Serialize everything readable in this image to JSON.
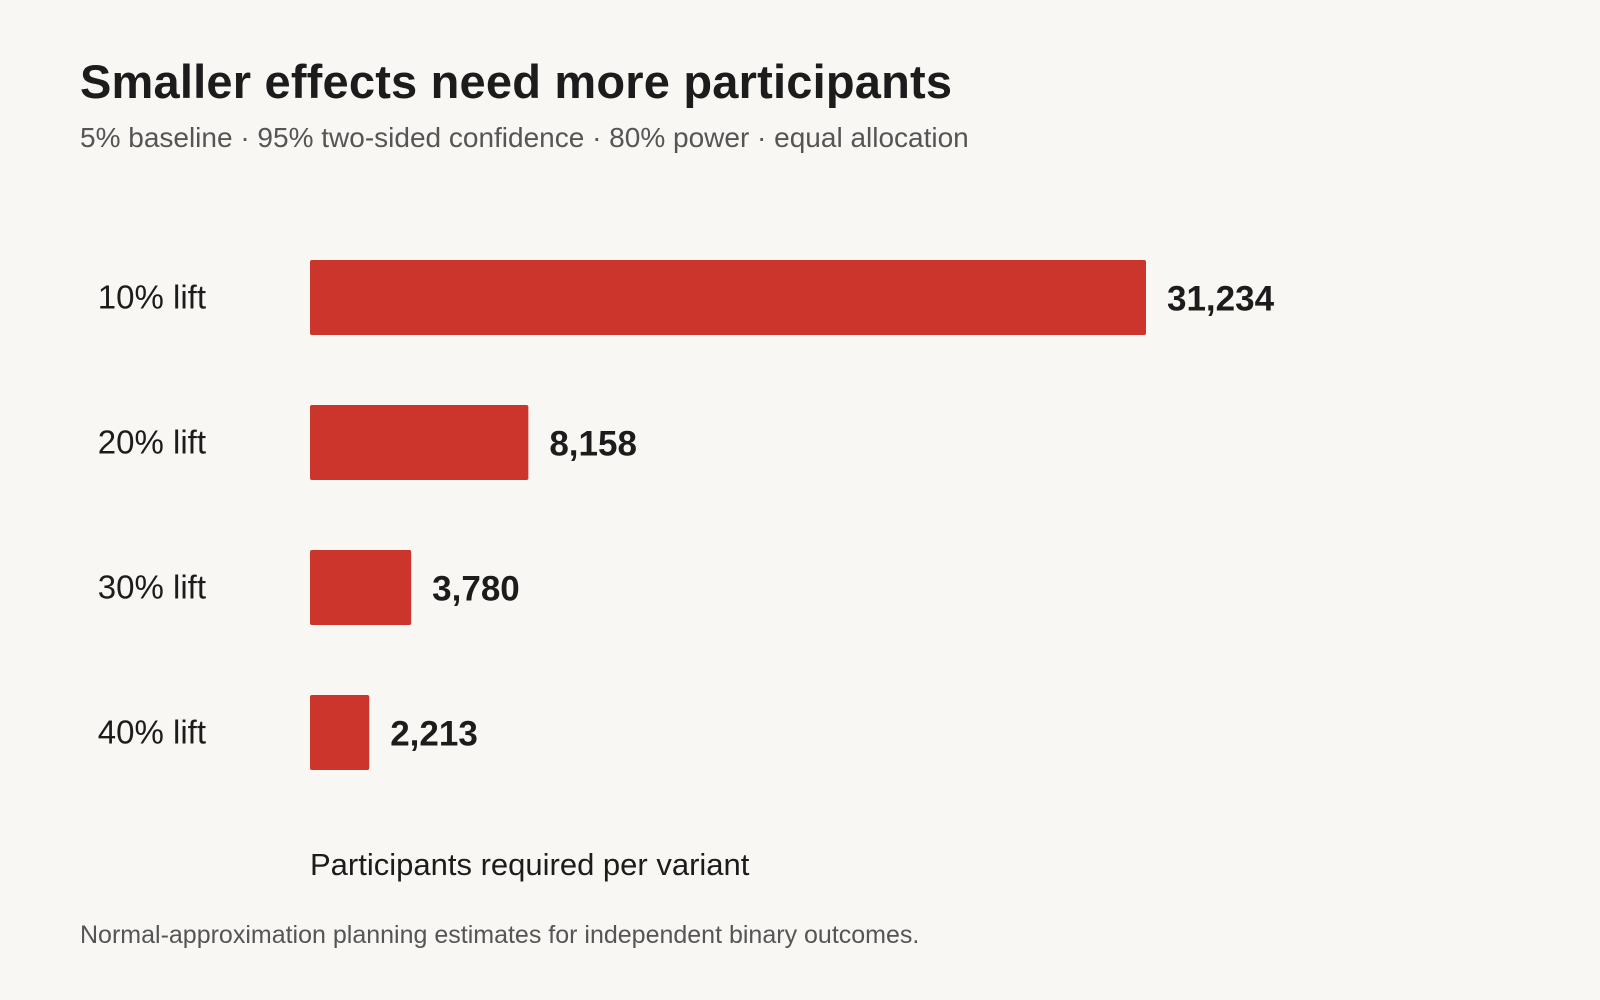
{
  "chart_data": {
    "type": "bar",
    "orientation": "horizontal",
    "title": "Smaller effects need more participants",
    "subtitle": "5% baseline · 95% two-sided confidence · 80% power · equal allocation",
    "categories": [
      "10% lift",
      "20% lift",
      "30% lift",
      "40% lift"
    ],
    "values": [
      31234,
      8158,
      3780,
      2213
    ],
    "value_labels": [
      "31,234",
      "8,158",
      "3,780",
      "2,213"
    ],
    "xlabel": "Participants required per variant",
    "ylabel": "",
    "xlim": [
      0,
      31234
    ],
    "grid": false,
    "legend": "none",
    "bar_color": "#cb352b"
  },
  "footnote": "Normal-approximation planning estimates for independent binary outcomes."
}
